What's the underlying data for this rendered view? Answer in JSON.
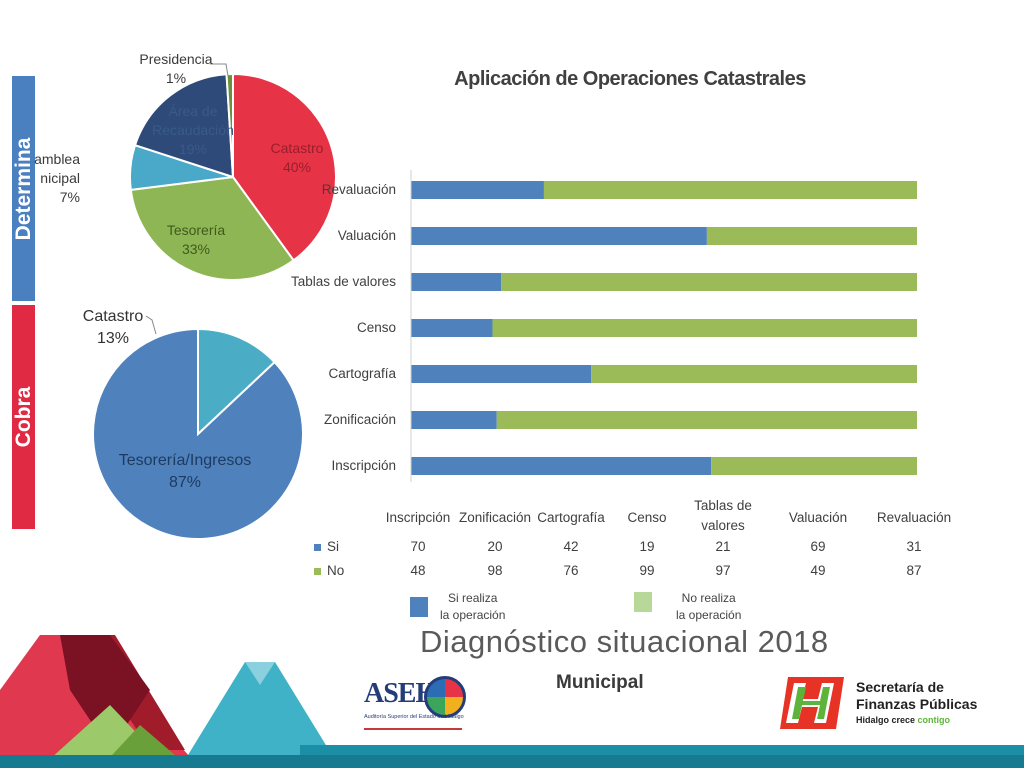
{
  "sidebar": {
    "top_label": "Determina",
    "bottom_label": "Cobra",
    "top_color": "#4a7fc0",
    "bottom_color": "#e02a43"
  },
  "chart_data": [
    {
      "type": "pie",
      "labels": [
        "Catastro",
        "Tesorería",
        "Asamblea Municipal",
        "Área de Recaudación",
        "Presidencia"
      ],
      "values": [
        40,
        33,
        7,
        19,
        1
      ],
      "display_labels": [
        "Catastro\n40%",
        "Tesorería\n33%",
        "amblea\nnicipal\n7%",
        "Área de\nRecaudación\n19%",
        "Presidencia\n1%"
      ],
      "colors": [
        "#e63346",
        "#8fb654",
        "#4aa8c8",
        "#2d4a78",
        "#6e8f3a"
      ]
    },
    {
      "type": "pie",
      "labels": [
        "Tesorería/Ingresos",
        "Catastro"
      ],
      "values": [
        87,
        13
      ],
      "display_labels": [
        "Tesorería/Ingresos\n87%",
        "Catastro\n13%"
      ],
      "colors": [
        "#4f81bd",
        "#4bacc6"
      ]
    },
    {
      "type": "bar",
      "orientation": "horizontal-stacked",
      "title": "Aplicación de Operaciones Catastrales",
      "categories": [
        "Inscripción",
        "Zonificación",
        "Cartografía",
        "Censo",
        "Tablas de valores",
        "Valuación",
        "Revaluación"
      ],
      "table_headers": [
        "Inscripción",
        "Zonificación",
        "Cartografía",
        "Censo",
        "Tablas de\nvalores",
        "Valuación",
        "Revaluación"
      ],
      "series": [
        {
          "name": "Si",
          "values": [
            70,
            20,
            42,
            19,
            21,
            69,
            31
          ],
          "color": "#4f81bd"
        },
        {
          "name": "No",
          "values": [
            48,
            98,
            76,
            99,
            97,
            49,
            87
          ],
          "color": "#9bbb59"
        }
      ]
    }
  ],
  "legend": {
    "si_text": "Si realiza\nla operación",
    "no_text": "No realiza\nla operación",
    "si_color": "#4f81bd",
    "no_color": "#b8d89a"
  },
  "footer": {
    "heading": "Diagnóstico situacional 2018",
    "subheading": "Municipal",
    "logo_left_text": "ASEH",
    "logo_left_sub": "Auditoría Superior del Estado de Hidalgo",
    "logo_right_line1": "Secretaría de",
    "logo_right_line2": "Finanzas Públicas",
    "logo_right_slogan_a": "Hidalgo crece",
    "logo_right_slogan_b": "contigo"
  }
}
